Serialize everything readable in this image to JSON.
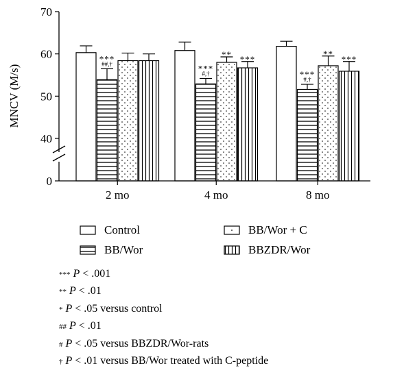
{
  "chart_data": {
    "type": "bar",
    "ylabel": "MNCV (M/s)",
    "ylim": [
      0,
      70
    ],
    "axis_break": {
      "between": [
        0,
        40
      ]
    },
    "yticks": [
      0,
      40,
      50,
      60,
      70
    ],
    "categories": [
      "2 mo",
      "4 mo",
      "8 mo"
    ],
    "series": [
      {
        "name": "Control",
        "values": [
          60.3,
          60.8,
          61.8
        ],
        "errors": [
          1.6,
          2.0,
          1.2
        ],
        "pattern": "plain"
      },
      {
        "name": "BB/Wor",
        "values": [
          53.9,
          52.9,
          51.6
        ],
        "errors": [
          2.6,
          1.3,
          1.2
        ],
        "pattern": "horizontal"
      },
      {
        "name": "BB/Wor + C",
        "values": [
          58.4,
          58.0,
          57.2
        ],
        "errors": [
          1.8,
          1.3,
          2.3
        ],
        "pattern": "dots"
      },
      {
        "name": "BBZDR/Wor",
        "values": [
          58.4,
          56.7,
          55.9
        ],
        "errors": [
          1.6,
          1.5,
          2.3
        ],
        "pattern": "vertical"
      }
    ],
    "annotations": [
      {
        "category": "2 mo",
        "series": "BB/Wor",
        "lines": [
          "***",
          "##,†"
        ]
      },
      {
        "category": "4 mo",
        "series": "BB/Wor",
        "lines": [
          "***",
          "#,†"
        ]
      },
      {
        "category": "4 mo",
        "series": "BB/Wor + C",
        "lines": [
          "**"
        ]
      },
      {
        "category": "4 mo",
        "series": "BBZDR/Wor",
        "lines": [
          "***"
        ]
      },
      {
        "category": "8 mo",
        "series": "BB/Wor",
        "lines": [
          "***",
          "#,†"
        ]
      },
      {
        "category": "8 mo",
        "series": "BB/Wor + C",
        "lines": [
          "**"
        ]
      },
      {
        "category": "8 mo",
        "series": "BBZDR/Wor",
        "lines": [
          "***"
        ]
      }
    ]
  },
  "legend": [
    {
      "label": "Control",
      "pattern": "plain"
    },
    {
      "label": "BB/Wor + C",
      "pattern": "dots"
    },
    {
      "label": "BB/Wor",
      "pattern": "horizontal"
    },
    {
      "label": "BBZDR/Wor",
      "pattern": "vertical"
    }
  ],
  "footnotes": [
    {
      "marker": "***",
      "p": "P",
      "text": " < .001"
    },
    {
      "marker": "**",
      "p": "P",
      "text": " < .01"
    },
    {
      "marker": "*",
      "p": "P",
      "text": " < .05 versus control"
    },
    {
      "marker": "##",
      "p": "P",
      "text": " < .01"
    },
    {
      "marker": "#",
      "p": "P",
      "text": " < .05 versus BBZDR/Wor-rats"
    },
    {
      "marker": "†",
      "p": "P",
      "text": " < .01 versus BB/Wor treated with C-peptide"
    }
  ]
}
